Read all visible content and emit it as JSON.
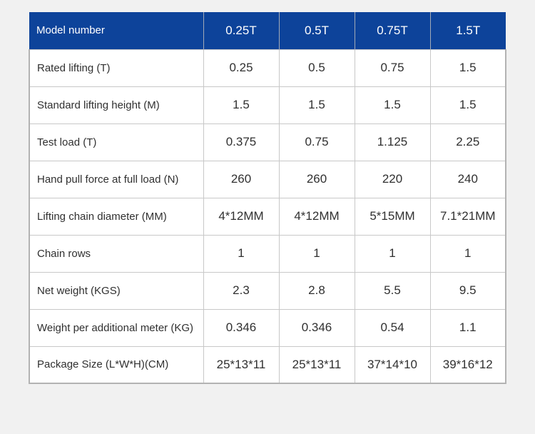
{
  "colors": {
    "page_background": "#f1f1f1",
    "header_background": "#0d439a",
    "header_text": "#ffffff",
    "body_text": "#303030",
    "cell_background": "#ffffff",
    "inner_border": "#c8c8c8",
    "outer_border": "#b3b3b3"
  },
  "chart_data": {
    "type": "table",
    "title": "",
    "columns": [
      "Model number",
      "0.25T",
      "0.5T",
      "0.75T",
      "1.5T"
    ],
    "rows": [
      {
        "label": "Rated lifting (T)",
        "values": [
          "0.25",
          "0.5",
          "0.75",
          "1.5"
        ]
      },
      {
        "label": "Standard lifting height (M)",
        "values": [
          "1.5",
          "1.5",
          "1.5",
          "1.5"
        ]
      },
      {
        "label": "Test load (T)",
        "values": [
          "0.375",
          "0.75",
          "1.125",
          "2.25"
        ]
      },
      {
        "label": "Hand pull force at full load (N)",
        "values": [
          "260",
          "260",
          "220",
          "240"
        ]
      },
      {
        "label": "Lifting chain diameter (MM)",
        "values": [
          "4*12MM",
          "4*12MM",
          "5*15MM",
          "7.1*21MM"
        ]
      },
      {
        "label": "Chain rows",
        "values": [
          "1",
          "1",
          "1",
          "1"
        ]
      },
      {
        "label": "Net weight (KGS)",
        "values": [
          "2.3",
          "2.8",
          "5.5",
          "9.5"
        ]
      },
      {
        "label": "Weight per additional meter (KG)",
        "values": [
          "0.346",
          "0.346",
          "0.54",
          "1.1"
        ]
      },
      {
        "label": "Package Size (L*W*H)(CM)",
        "values": [
          "25*13*11",
          "25*13*11",
          "37*14*10",
          "39*16*12"
        ]
      }
    ]
  }
}
